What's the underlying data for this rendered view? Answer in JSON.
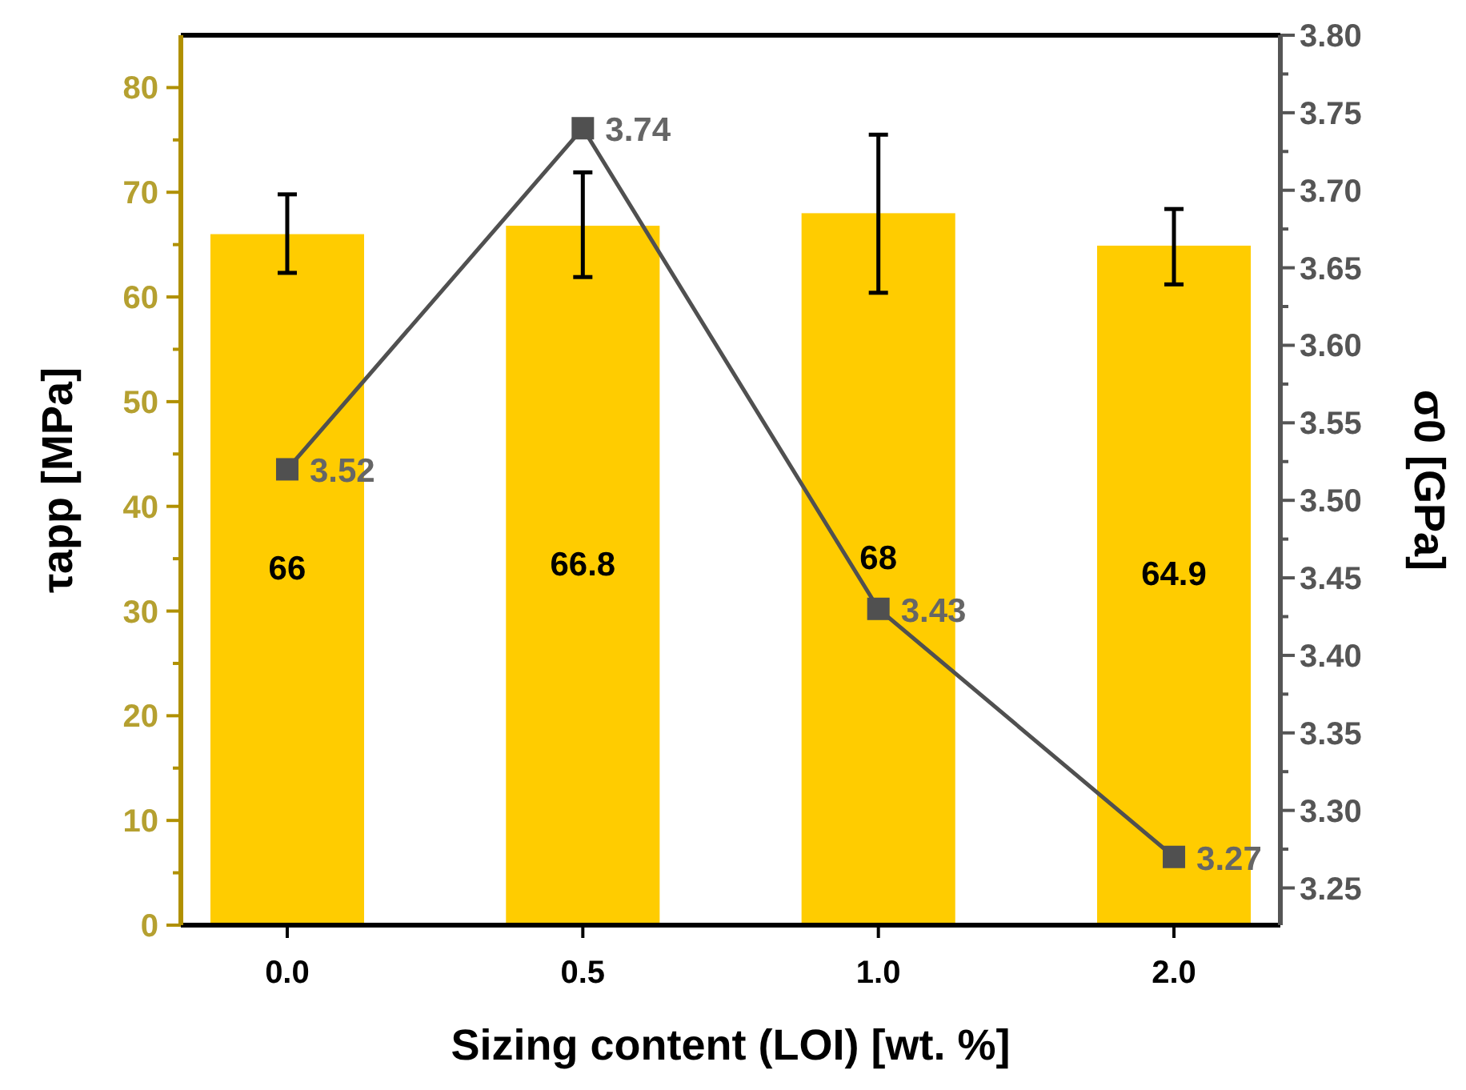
{
  "chart_data": {
    "type": "bar",
    "xlabel": "Sizing content (LOI) [wt. %]",
    "ylabel": "τapp [MPa]",
    "y2label": "σ0 [GPa]",
    "categories": [
      "0.0",
      "0.5",
      "1.0",
      "2.0"
    ],
    "series": [
      {
        "color": "#ffcc00",
        "values": [
          66,
          66.8,
          68,
          64.9
        ],
        "errors": [
          [
            62.3,
            69.8
          ],
          [
            61.9,
            71.9
          ],
          [
            60.4,
            75.5
          ],
          [
            61.2,
            68.4
          ]
        ]
      },
      {
        "type": "line",
        "axis": "y2",
        "color": "#505050",
        "values": [
          3.52,
          3.74,
          3.43,
          3.27
        ]
      }
    ],
    "ylim": [
      0,
      85
    ],
    "yticks": [
      0,
      {
        "value": 5,
        "label": null
      },
      10,
      {
        "value": 15,
        "label": null
      },
      20,
      {
        "value": 25,
        "label": null
      },
      30,
      {
        "value": 35,
        "label": null
      },
      40,
      {
        "value": 45,
        "label": null
      },
      50,
      {
        "value": 55,
        "label": null
      },
      60,
      {
        "value": 65,
        "label": null
      },
      70,
      {
        "value": 75,
        "label": null
      },
      80
    ],
    "y2lim": [
      3.226,
      3.8
    ],
    "y2ticks": [
      {
        "value": 3.25,
        "label": "3.25"
      },
      {
        "value": 3.275,
        "label": null
      },
      {
        "value": 3.3,
        "label": "3.30"
      },
      {
        "value": 3.325,
        "label": null
      },
      {
        "value": 3.35,
        "label": "3.35"
      },
      {
        "value": 3.375,
        "label": null
      },
      {
        "value": 3.4,
        "label": "3.40"
      },
      {
        "value": 3.425,
        "label": null
      },
      {
        "value": 3.45,
        "label": "3.45"
      },
      {
        "value": 3.475,
        "label": null
      },
      {
        "value": 3.5,
        "label": "3.50"
      },
      {
        "value": 3.525,
        "label": null
      },
      {
        "value": 3.55,
        "label": "3.55"
      },
      {
        "value": 3.575,
        "label": null
      },
      {
        "value": 3.6,
        "label": "3.60"
      },
      {
        "value": 3.625,
        "label": null
      },
      {
        "value": 3.65,
        "label": "3.65"
      },
      {
        "value": 3.675,
        "label": null
      },
      {
        "value": 3.7,
        "label": "3.70"
      },
      {
        "value": 3.725,
        "label": null
      },
      {
        "value": 3.75,
        "label": "3.75"
      },
      {
        "value": 3.775,
        "label": null
      },
      {
        "value": 3.8,
        "label": "3.80"
      }
    ],
    "marker": "square",
    "data_labels": true,
    "grid": false
  }
}
